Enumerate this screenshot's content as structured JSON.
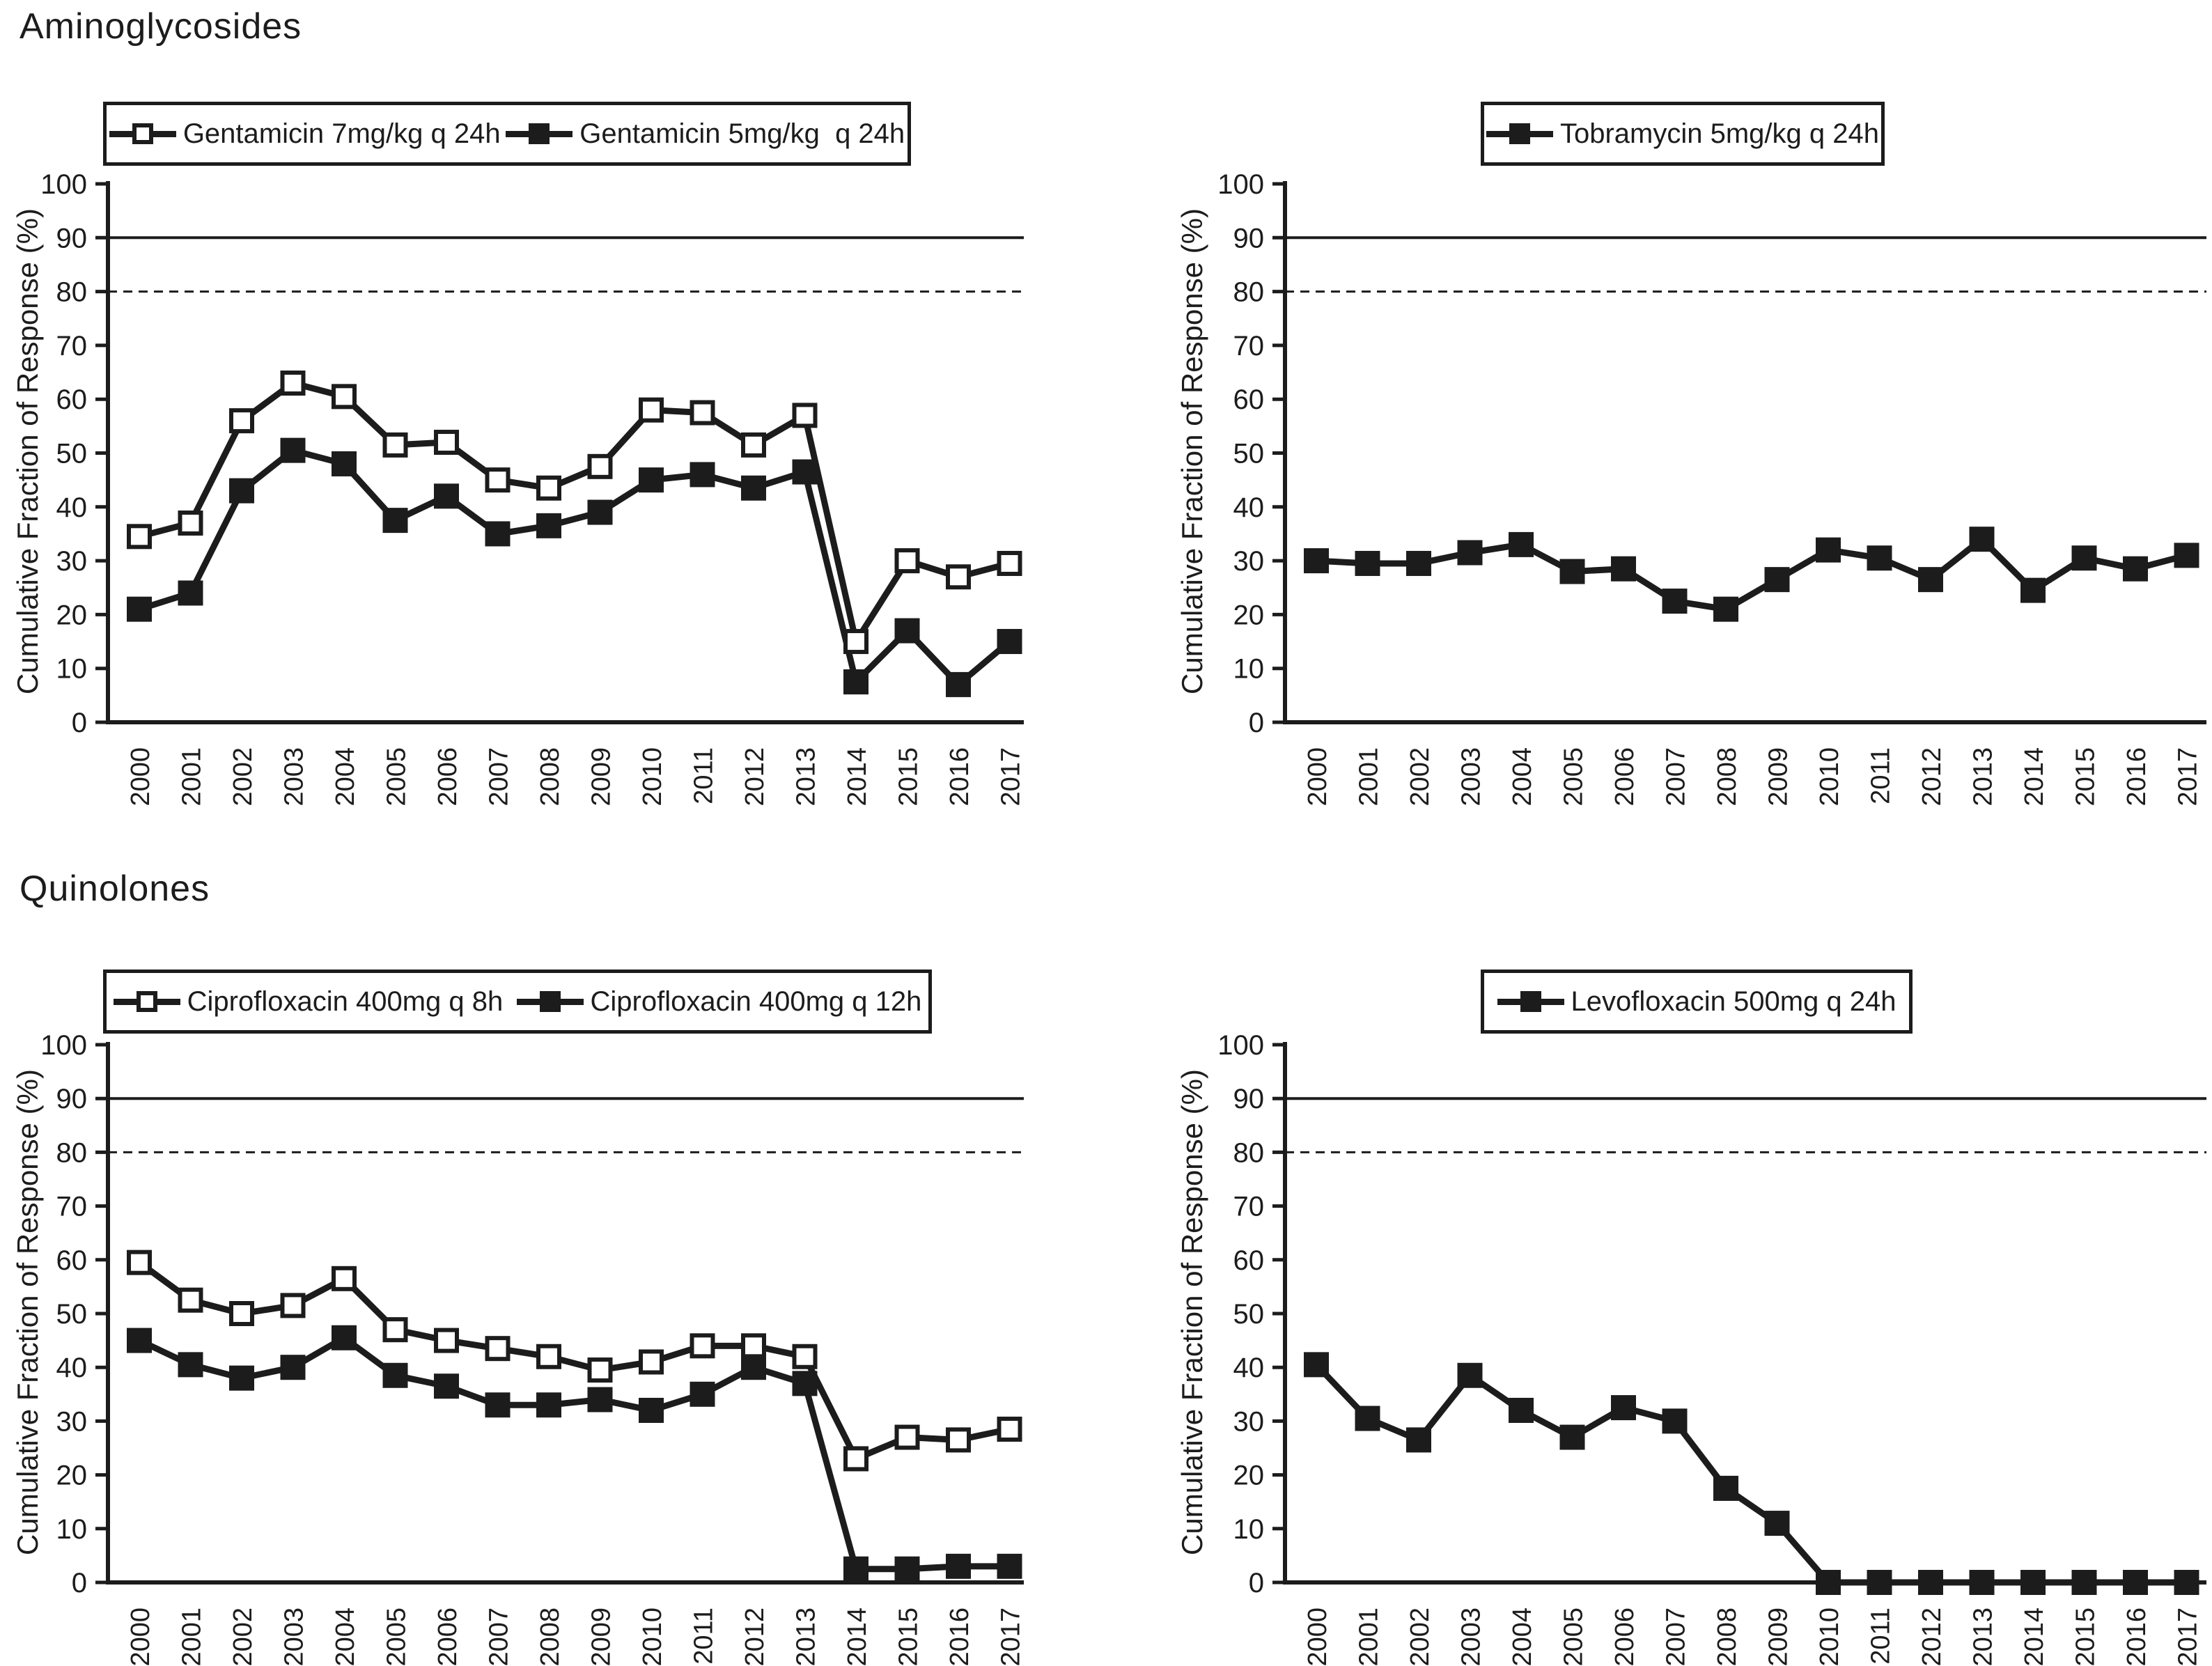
{
  "sections": [
    {
      "title": "Aminoglycosides"
    },
    {
      "title": "Quinolones"
    }
  ],
  "colors": {
    "ink": "#1c1c1c",
    "background": "#ffffff"
  },
  "axis": {
    "ylabel": "Cumulative Fraction of Response (%)",
    "yticks": [
      0,
      10,
      20,
      30,
      40,
      50,
      60,
      70,
      80,
      90,
      100
    ],
    "years": [
      "2000",
      "2001",
      "2002",
      "2003",
      "2004",
      "2005",
      "2006",
      "2007",
      "2008",
      "2009",
      "2010",
      "2011",
      "2012",
      "2013",
      "2014",
      "2015",
      "2016",
      "2017"
    ]
  },
  "chart_data": [
    {
      "type": "line",
      "panel": "top-left",
      "group": "Aminoglycosides",
      "ylabel": "Cumulative Fraction of Response (%)",
      "ylim": [
        0,
        100
      ],
      "grid": false,
      "legend_position": "top",
      "x": [
        "2000",
        "2001",
        "2002",
        "2003",
        "2004",
        "2005",
        "2006",
        "2007",
        "2008",
        "2009",
        "2010",
        "2011",
        "2012",
        "2013",
        "2014",
        "2015",
        "2016",
        "2017"
      ],
      "reference_lines": [
        {
          "value": 90,
          "style": "solid"
        },
        {
          "value": 80,
          "style": "dashed"
        }
      ],
      "series": [
        {
          "name": "Gentamicin 7mg/kg q 24h",
          "marker": "open-square",
          "values": [
            34.5,
            37,
            56,
            63,
            60.5,
            51.5,
            52,
            45,
            43.5,
            47.5,
            58,
            57.5,
            51.5,
            57,
            15,
            30,
            27,
            29.5
          ]
        },
        {
          "name": "Gentamicin 5mg/kg  q 24h",
          "marker": "filled-square",
          "values": [
            21,
            24,
            43,
            50.5,
            48,
            37.5,
            42,
            35,
            36.5,
            39,
            45,
            46,
            43.5,
            46.5,
            7.5,
            17,
            7,
            15
          ]
        }
      ]
    },
    {
      "type": "line",
      "panel": "top-right",
      "group": "Aminoglycosides",
      "ylabel": "Cumulative Fraction of Response (%)",
      "ylim": [
        0,
        100
      ],
      "grid": false,
      "legend_position": "top",
      "x": [
        "2000",
        "2001",
        "2002",
        "2003",
        "2004",
        "2005",
        "2006",
        "2007",
        "2008",
        "2009",
        "2010",
        "2011",
        "2012",
        "2013",
        "2014",
        "2015",
        "2016",
        "2017"
      ],
      "reference_lines": [
        {
          "value": 90,
          "style": "solid"
        },
        {
          "value": 80,
          "style": "dashed"
        }
      ],
      "series": [
        {
          "name": "Tobramycin 5mg/kg q 24h",
          "marker": "filled-square",
          "values": [
            30,
            29.5,
            29.5,
            31.5,
            33,
            28,
            28.5,
            22.5,
            21,
            26.5,
            32,
            30.5,
            26.5,
            34,
            24.5,
            30.5,
            28.5,
            31
          ]
        }
      ]
    },
    {
      "type": "line",
      "panel": "bottom-left",
      "group": "Quinolones",
      "ylabel": "Cumulative Fraction of Response (%)",
      "ylim": [
        0,
        100
      ],
      "grid": false,
      "legend_position": "top",
      "x": [
        "2000",
        "2001",
        "2002",
        "2003",
        "2004",
        "2005",
        "2006",
        "2007",
        "2008",
        "2009",
        "2010",
        "2011",
        "2012",
        "2013",
        "2014",
        "2015",
        "2016",
        "2017"
      ],
      "reference_lines": [
        {
          "value": 90,
          "style": "solid"
        },
        {
          "value": 80,
          "style": "dashed"
        }
      ],
      "series": [
        {
          "name": "Ciprofloxacin 400mg q 8h",
          "marker": "open-square",
          "values": [
            59.5,
            52.5,
            50,
            51.5,
            56.5,
            47,
            45,
            43.5,
            42,
            39.5,
            41,
            44,
            44,
            42,
            23,
            27,
            26.5,
            28.5
          ]
        },
        {
          "name": "Ciprofloxacin 400mg q 12h",
          "marker": "filled-square",
          "values": [
            45,
            40.5,
            38,
            40,
            45.5,
            38.5,
            36.5,
            33,
            33,
            34,
            32,
            35,
            40,
            37,
            2.5,
            2.5,
            3,
            3
          ]
        }
      ]
    },
    {
      "type": "line",
      "panel": "bottom-right",
      "group": "Quinolones",
      "ylabel": "Cumulative Fraction of Response (%)",
      "ylim": [
        0,
        100
      ],
      "grid": false,
      "legend_position": "top",
      "x": [
        "2000",
        "2001",
        "2002",
        "2003",
        "2004",
        "2005",
        "2006",
        "2007",
        "2008",
        "2009",
        "2010",
        "2011",
        "2012",
        "2013",
        "2014",
        "2015",
        "2016",
        "2017"
      ],
      "reference_lines": [
        {
          "value": 90,
          "style": "solid"
        },
        {
          "value": 80,
          "style": "dashed"
        }
      ],
      "series": [
        {
          "name": "Levofloxacin 500mg q 24h",
          "marker": "filled-square",
          "values": [
            40.5,
            30.5,
            26.5,
            38.5,
            32,
            27,
            32.5,
            30,
            17.5,
            11,
            0,
            0,
            0,
            0,
            0,
            0,
            0,
            0
          ]
        }
      ]
    }
  ]
}
